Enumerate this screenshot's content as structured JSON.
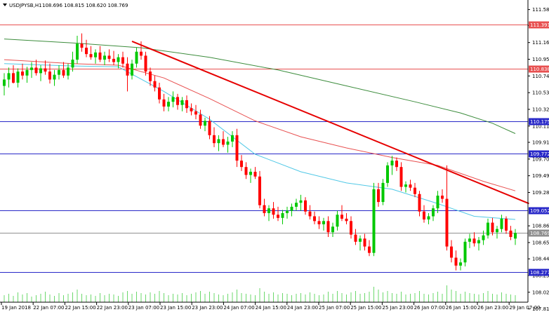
{
  "header": {
    "symbol_label": "USDJPYSB,H1",
    "ohlc": "108.696 108.815 108.620 108.769"
  },
  "colors": {
    "bull": "#00c800",
    "bear": "#ff0000",
    "ma_green": "#3c8c3c",
    "ma_red": "#e85050",
    "ma_cyan": "#50c8e6",
    "trendline": "#e60000",
    "h_red": "#e85050",
    "h_blue": "#2828c8",
    "h_grey": "#909090",
    "volume": "#6cd86c"
  },
  "chart_data": {
    "type": "candlestick",
    "title": "USDJPYSB,H1",
    "ylim": [
      107.9,
      111.7
    ],
    "y_ticks": [
      "111.580",
      "111.380",
      "111.165",
      "110.955",
      "110.745",
      "110.535",
      "110.325",
      "110.115",
      "109.910",
      "109.700",
      "109.490",
      "109.280",
      "108.860",
      "108.650",
      "108.445",
      "108.235",
      "108.025",
      "107.815"
    ],
    "x_ticks": [
      "19 Jan 2018",
      "22 Jan 07:00",
      "22 Jan 15:00",
      "22 Jan 23:00",
      "23 Jan 07:00",
      "23 Jan 15:00",
      "23 Jan 23:00",
      "24 Jan 07:00",
      "24 Jan 15:00",
      "24 Jan 23:00",
      "25 Jan 07:00",
      "25 Jan 15:00",
      "25 Jan 23:00",
      "26 Jan 07:00",
      "26 Jan 15:00",
      "26 Jan 23:00",
      "29 Jan 07:00"
    ],
    "candles": [
      [
        110.62,
        110.78,
        110.5,
        110.7
      ],
      [
        110.7,
        110.85,
        110.6,
        110.78
      ],
      [
        110.78,
        110.88,
        110.65,
        110.66
      ],
      [
        110.66,
        110.84,
        110.6,
        110.8
      ],
      [
        110.8,
        110.9,
        110.7,
        110.75
      ],
      [
        110.75,
        110.86,
        110.66,
        110.82
      ],
      [
        110.82,
        110.92,
        110.72,
        110.85
      ],
      [
        110.85,
        110.95,
        110.75,
        110.78
      ],
      [
        110.78,
        110.88,
        110.68,
        110.84
      ],
      [
        110.84,
        110.94,
        110.76,
        110.8
      ],
      [
        110.8,
        110.9,
        110.65,
        110.7
      ],
      [
        110.7,
        110.82,
        110.62,
        110.76
      ],
      [
        110.76,
        110.88,
        110.7,
        110.82
      ],
      [
        110.82,
        110.92,
        110.72,
        110.75
      ],
      [
        110.75,
        110.9,
        110.7,
        110.85
      ],
      [
        110.85,
        111.05,
        110.8,
        110.95
      ],
      [
        110.95,
        111.25,
        110.9,
        111.15
      ],
      [
        111.15,
        111.28,
        111.05,
        111.1
      ],
      [
        111.1,
        111.2,
        110.98,
        111.02
      ],
      [
        111.02,
        111.12,
        110.95,
        110.98
      ],
      [
        110.98,
        111.08,
        110.9,
        111.04
      ],
      [
        111.04,
        111.12,
        110.92,
        110.95
      ],
      [
        110.95,
        111.05,
        110.88,
        111.0
      ],
      [
        111.0,
        111.08,
        110.92,
        110.96
      ],
      [
        110.96,
        111.06,
        110.88,
        110.92
      ],
      [
        110.92,
        111.02,
        110.84,
        110.98
      ],
      [
        110.98,
        111.05,
        110.85,
        110.9
      ],
      [
        110.9,
        110.98,
        110.55,
        110.75
      ],
      [
        110.75,
        110.95,
        110.7,
        110.9
      ],
      [
        110.9,
        111.1,
        110.85,
        111.05
      ],
      [
        111.05,
        111.18,
        110.95,
        111.0
      ],
      [
        111.0,
        111.05,
        110.75,
        110.8
      ],
      [
        110.8,
        110.85,
        110.62,
        110.68
      ],
      [
        110.68,
        110.75,
        110.55,
        110.6
      ],
      [
        110.6,
        110.66,
        110.4,
        110.45
      ],
      [
        110.45,
        110.52,
        110.3,
        110.36
      ],
      [
        110.36,
        110.48,
        110.3,
        110.42
      ],
      [
        110.42,
        110.55,
        110.35,
        110.48
      ],
      [
        110.48,
        110.52,
        110.32,
        110.38
      ],
      [
        110.38,
        110.48,
        110.3,
        110.44
      ],
      [
        110.44,
        110.5,
        110.28,
        110.34
      ],
      [
        110.34,
        110.4,
        110.25,
        110.3
      ],
      [
        110.3,
        110.38,
        110.2,
        110.26
      ],
      [
        110.26,
        110.32,
        110.08,
        110.12
      ],
      [
        110.12,
        110.22,
        110.05,
        110.18
      ],
      [
        110.18,
        110.24,
        109.95,
        110.0
      ],
      [
        110.0,
        110.1,
        109.85,
        109.9
      ],
      [
        109.9,
        110.0,
        109.8,
        109.95
      ],
      [
        109.95,
        110.05,
        109.85,
        109.88
      ],
      [
        109.88,
        109.98,
        109.78,
        109.92
      ],
      [
        109.92,
        110.05,
        109.85,
        110.0
      ],
      [
        110.0,
        110.08,
        109.6,
        109.68
      ],
      [
        109.68,
        109.75,
        109.55,
        109.6
      ],
      [
        109.6,
        109.66,
        109.45,
        109.5
      ],
      [
        109.5,
        109.58,
        109.4,
        109.54
      ],
      [
        109.54,
        109.6,
        109.45,
        109.48
      ],
      [
        109.48,
        109.55,
        109.08,
        109.12
      ],
      [
        109.12,
        109.2,
        108.98,
        109.02
      ],
      [
        109.02,
        109.12,
        108.92,
        109.08
      ],
      [
        109.08,
        109.16,
        108.95,
        109.0
      ],
      [
        109.0,
        109.1,
        108.92,
        108.96
      ],
      [
        108.96,
        109.06,
        108.88,
        109.02
      ],
      [
        109.02,
        109.1,
        108.95,
        109.05
      ],
      [
        109.05,
        109.14,
        108.98,
        109.1
      ],
      [
        109.1,
        109.2,
        109.05,
        109.15
      ],
      [
        109.15,
        109.25,
        109.05,
        109.18
      ],
      [
        109.18,
        109.22,
        109.0,
        109.04
      ],
      [
        109.04,
        109.12,
        108.94,
        108.98
      ],
      [
        108.98,
        109.04,
        108.88,
        108.92
      ],
      [
        108.92,
        108.98,
        108.82,
        108.88
      ],
      [
        108.88,
        108.96,
        108.8,
        108.92
      ],
      [
        108.92,
        108.98,
        108.72,
        108.78
      ],
      [
        108.78,
        108.9,
        108.72,
        108.85
      ],
      [
        108.85,
        109.05,
        108.8,
        109.0
      ],
      [
        109.0,
        109.12,
        108.92,
        108.95
      ],
      [
        108.95,
        109.02,
        108.88,
        108.92
      ],
      [
        108.92,
        108.98,
        108.7,
        108.75
      ],
      [
        108.75,
        108.82,
        108.62,
        108.66
      ],
      [
        108.66,
        108.74,
        108.55,
        108.7
      ],
      [
        108.7,
        108.76,
        108.55,
        108.6
      ],
      [
        108.6,
        108.68,
        108.48,
        108.52
      ],
      [
        108.52,
        109.4,
        108.48,
        109.32
      ],
      [
        109.32,
        109.4,
        109.1,
        109.16
      ],
      [
        109.16,
        109.45,
        109.12,
        109.4
      ],
      [
        109.4,
        109.66,
        109.35,
        109.62
      ],
      [
        109.62,
        109.74,
        109.5,
        109.68
      ],
      [
        109.68,
        109.72,
        109.55,
        109.6
      ],
      [
        109.6,
        109.66,
        109.3,
        109.35
      ],
      [
        109.35,
        109.42,
        109.28,
        109.38
      ],
      [
        109.38,
        109.44,
        109.3,
        109.34
      ],
      [
        109.34,
        109.4,
        109.22,
        109.26
      ],
      [
        109.26,
        109.3,
        108.98,
        109.04
      ],
      [
        109.04,
        109.12,
        108.9,
        108.94
      ],
      [
        108.94,
        109.02,
        108.88,
        108.98
      ],
      [
        108.98,
        109.12,
        108.92,
        109.08
      ],
      [
        109.08,
        109.3,
        109.02,
        109.24
      ],
      [
        109.24,
        109.32,
        109.15,
        109.2
      ],
      [
        109.2,
        109.62,
        108.55,
        108.6
      ],
      [
        108.6,
        108.68,
        108.4,
        108.46
      ],
      [
        108.46,
        108.55,
        108.3,
        108.36
      ],
      [
        108.36,
        108.45,
        108.3,
        108.4
      ],
      [
        108.4,
        108.7,
        108.35,
        108.66
      ],
      [
        108.66,
        108.76,
        108.58,
        108.7
      ],
      [
        108.7,
        108.78,
        108.6,
        108.64
      ],
      [
        108.64,
        108.72,
        108.55,
        108.68
      ],
      [
        108.68,
        108.8,
        108.62,
        108.74
      ],
      [
        108.74,
        108.95,
        108.7,
        108.9
      ],
      [
        108.9,
        108.96,
        108.74,
        108.78
      ],
      [
        108.78,
        108.86,
        108.7,
        108.82
      ],
      [
        108.82,
        109.0,
        108.78,
        108.95
      ],
      [
        108.95,
        108.98,
        108.76,
        108.8
      ],
      [
        108.8,
        108.86,
        108.68,
        108.72
      ],
      [
        108.7,
        108.82,
        108.62,
        108.77
      ]
    ],
    "moving_averages": [
      {
        "color_key": "ma_green",
        "points": [
          [
            0,
            111.21
          ],
          [
            15,
            111.16
          ],
          [
            30,
            111.1
          ],
          [
            45,
            110.98
          ],
          [
            60,
            110.82
          ],
          [
            75,
            110.62
          ],
          [
            90,
            110.42
          ],
          [
            100,
            110.28
          ],
          [
            107,
            110.15
          ],
          [
            112,
            110.02
          ]
        ]
      },
      {
        "color_key": "ma_red",
        "points": [
          [
            0,
            110.95
          ],
          [
            15,
            110.9
          ],
          [
            25,
            110.88
          ],
          [
            35,
            110.72
          ],
          [
            45,
            110.46
          ],
          [
            55,
            110.18
          ],
          [
            65,
            109.98
          ],
          [
            75,
            109.84
          ],
          [
            85,
            109.72
          ],
          [
            95,
            109.62
          ],
          [
            105,
            109.42
          ],
          [
            112,
            109.3
          ]
        ]
      },
      {
        "color_key": "ma_cyan",
        "points": [
          [
            0,
            110.9
          ],
          [
            15,
            110.87
          ],
          [
            25,
            110.86
          ],
          [
            35,
            110.55
          ],
          [
            45,
            110.2
          ],
          [
            55,
            109.76
          ],
          [
            65,
            109.54
          ],
          [
            75,
            109.4
          ],
          [
            85,
            109.32
          ],
          [
            95,
            109.14
          ],
          [
            103,
            108.98
          ],
          [
            112,
            108.94
          ]
        ]
      }
    ],
    "trendline": {
      "from": [
        28,
        111.18
      ],
      "to": [
        115,
        109.14
      ]
    },
    "horizontal_levels": [
      {
        "value": "111.391",
        "kind": "h_red"
      },
      {
        "value": "110.838",
        "kind": "h_red"
      },
      {
        "value": "110.175",
        "kind": "h_blue"
      },
      {
        "value": "109.772",
        "kind": "h_blue"
      },
      {
        "value": "109.052",
        "kind": "h_blue"
      },
      {
        "value": "108.769",
        "kind": "h_grey"
      },
      {
        "value": "108.277",
        "kind": "h_blue"
      }
    ],
    "volume": [
      10,
      12,
      9,
      14,
      11,
      13,
      8,
      10,
      12,
      15,
      11,
      9,
      13,
      10,
      12,
      14,
      18,
      12,
      10,
      11,
      9,
      13,
      10,
      12,
      11,
      9,
      14,
      16,
      12,
      15,
      13,
      11,
      14,
      12,
      16,
      13,
      10,
      12,
      11,
      13,
      10,
      12,
      14,
      16,
      12,
      15,
      13,
      11,
      10,
      12,
      14,
      18,
      13,
      12,
      11,
      10,
      20,
      15,
      12,
      14,
      11,
      13,
      12,
      10,
      12,
      13,
      11,
      14,
      12,
      10,
      11,
      15,
      12,
      16,
      13,
      11,
      14,
      16,
      12,
      13,
      15,
      22,
      18,
      14,
      16,
      13,
      12,
      15,
      11,
      12,
      13,
      16,
      12,
      11,
      13,
      15,
      12,
      24,
      18,
      16,
      12,
      15,
      13,
      12,
      11,
      13,
      16,
      12,
      11,
      14,
      12,
      11,
      10
    ]
  }
}
